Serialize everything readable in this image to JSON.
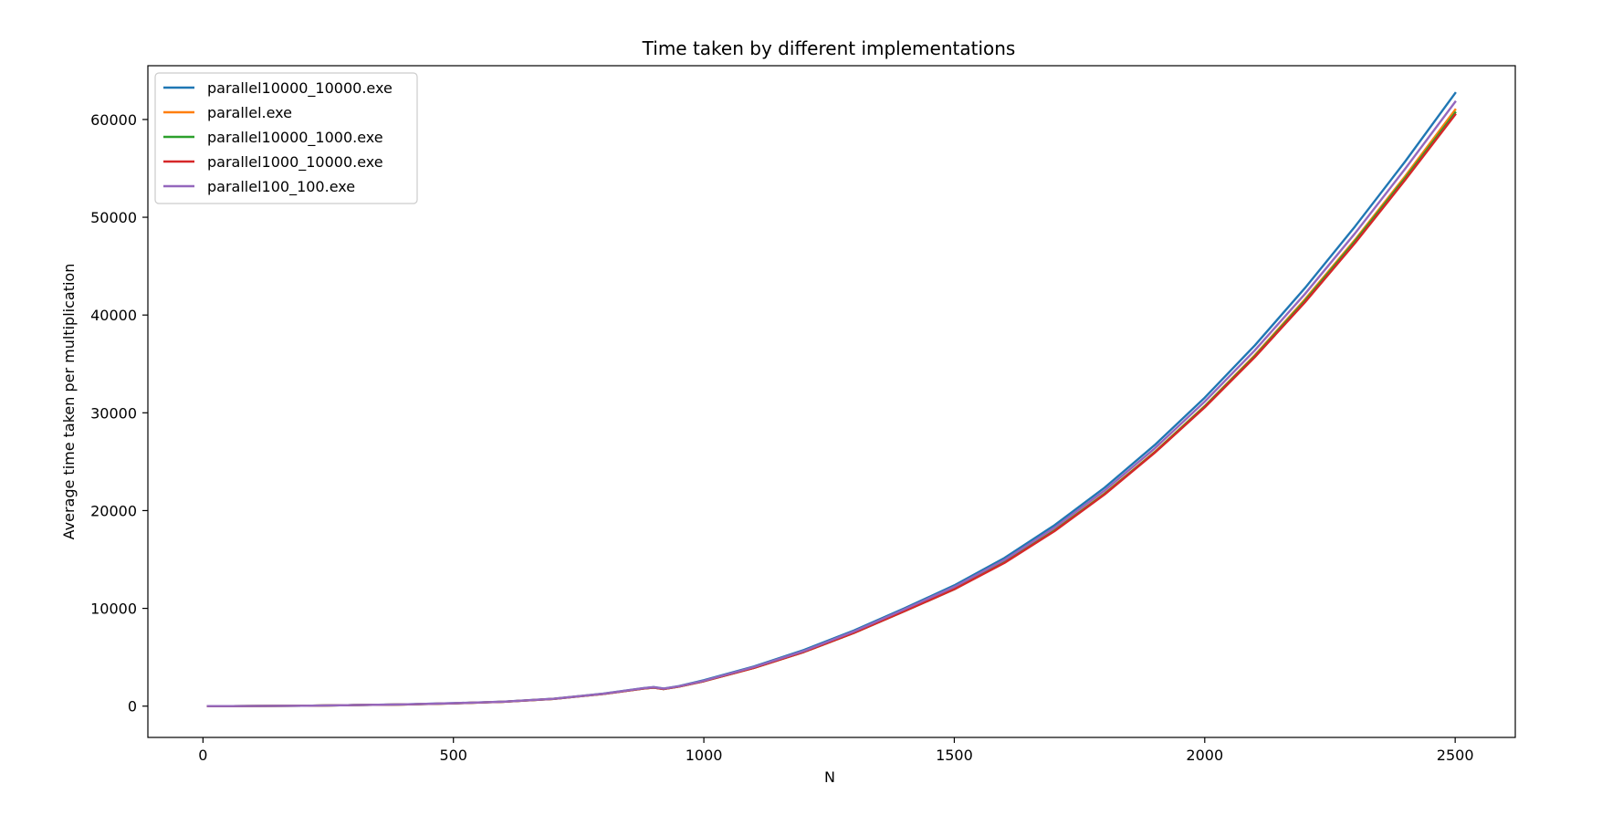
{
  "chart_data": {
    "type": "line",
    "title": "Time taken by different implementations",
    "xlabel": "N",
    "ylabel": "Average time taken per multiplication",
    "xlim": [
      -110,
      2620
    ],
    "ylim": [
      -3200,
      65500
    ],
    "xticks": [
      0,
      500,
      1000,
      1500,
      2000,
      2500
    ],
    "yticks": [
      0,
      10000,
      20000,
      30000,
      40000,
      50000,
      60000
    ],
    "grid": false,
    "legend_position": "top-left",
    "x": [
      10,
      100,
      200,
      300,
      400,
      500,
      600,
      700,
      800,
      880,
      900,
      920,
      950,
      1000,
      1100,
      1200,
      1300,
      1400,
      1500,
      1600,
      1700,
      1800,
      1900,
      2000,
      2100,
      2200,
      2300,
      2400,
      2500
    ],
    "series": [
      {
        "name": "parallel10000_10000.exe",
        "color": "#1f77b4",
        "values": [
          0,
          10,
          40,
          100,
          180,
          300,
          460,
          760,
          1280,
          1850,
          1950,
          1800,
          2050,
          2650,
          4050,
          5750,
          7750,
          10000,
          12350,
          15150,
          18500,
          22350,
          26700,
          31550,
          36900,
          42750,
          49050,
          55700,
          62700
        ]
      },
      {
        "name": "parallel.exe",
        "color": "#ff7f0e",
        "values": [
          0,
          10,
          40,
          100,
          170,
          280,
          450,
          740,
          1250,
          1800,
          1900,
          1750,
          2000,
          2550,
          3900,
          5550,
          7500,
          9750,
          12000,
          14750,
          18000,
          21750,
          26000,
          30700,
          35900,
          41600,
          47700,
          54200,
          61000
        ]
      },
      {
        "name": "parallel10000_1000.exe",
        "color": "#2ca02c",
        "values": [
          0,
          10,
          40,
          100,
          170,
          280,
          450,
          740,
          1250,
          1800,
          1900,
          1750,
          2000,
          2550,
          3900,
          5550,
          7500,
          9700,
          11950,
          14700,
          17950,
          21700,
          25950,
          30650,
          35800,
          41450,
          47550,
          54000,
          60700
        ]
      },
      {
        "name": "parallel1000_10000.exe",
        "color": "#d62728",
        "values": [
          0,
          10,
          40,
          100,
          170,
          280,
          450,
          740,
          1250,
          1800,
          1900,
          1750,
          2000,
          2550,
          3900,
          5550,
          7500,
          9700,
          11950,
          14650,
          17900,
          21650,
          25900,
          30550,
          35700,
          41300,
          47350,
          53800,
          60500
        ]
      },
      {
        "name": "parallel100_100.exe",
        "color": "#9467bd",
        "values": [
          0,
          10,
          40,
          100,
          180,
          300,
          460,
          750,
          1270,
          1830,
          1930,
          1780,
          2030,
          2600,
          4000,
          5650,
          7650,
          9900,
          12200,
          14950,
          18250,
          22050,
          26350,
          31150,
          36400,
          42150,
          48350,
          54950,
          61800
        ]
      }
    ]
  }
}
